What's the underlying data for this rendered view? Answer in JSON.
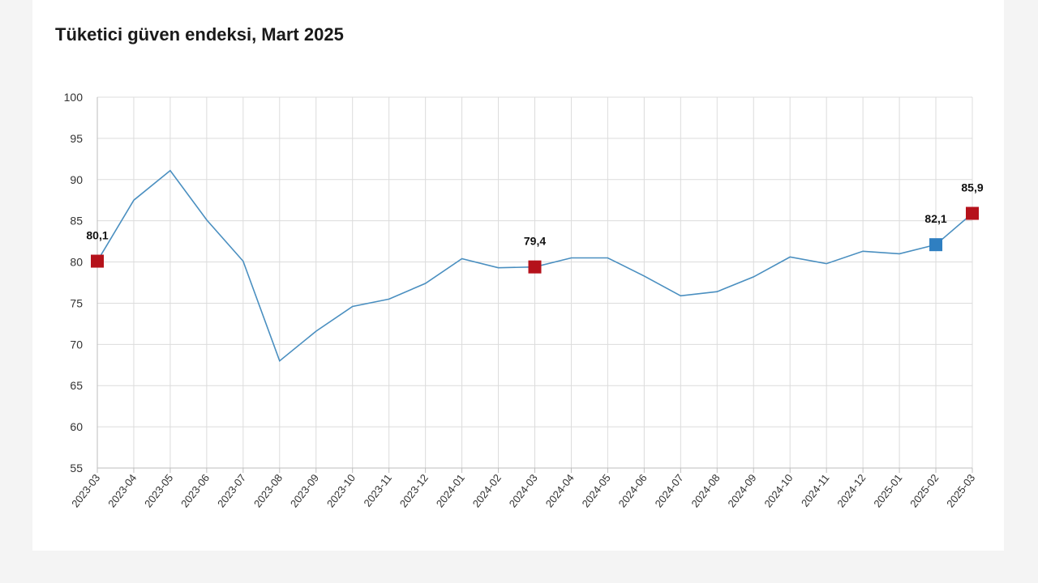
{
  "title": "Tüketici güven endeksi, Mart 2025",
  "colors": {
    "line": "#4a8fc0",
    "marker_red": "#b5121b",
    "marker_blue": "#2f7fc1",
    "grid": "#dcdcdc",
    "axis": "#bdbdbd"
  },
  "chart_data": {
    "type": "line",
    "title": "Tüketici güven endeksi, Mart 2025",
    "xlabel": "",
    "ylabel": "",
    "ylim": [
      55,
      100
    ],
    "yticks": [
      55,
      60,
      65,
      70,
      75,
      80,
      85,
      90,
      95,
      100
    ],
    "ytick_labels": [
      "55",
      "60",
      "65",
      "70",
      "75",
      "80",
      "85",
      "90",
      "95",
      "100"
    ],
    "grid": true,
    "categories": [
      "2023-03",
      "2023-04",
      "2023-05",
      "2023-06",
      "2023-07",
      "2023-08",
      "2023-09",
      "2023-10",
      "2023-11",
      "2023-12",
      "2024-01",
      "2024-02",
      "2024-03",
      "2024-04",
      "2024-05",
      "2024-06",
      "2024-07",
      "2024-08",
      "2024-09",
      "2024-10",
      "2024-11",
      "2024-12",
      "2025-01",
      "2025-02",
      "2025-03"
    ],
    "series": [
      {
        "values": [
          80.1,
          87.5,
          91.1,
          85.1,
          80.1,
          68.0,
          71.6,
          74.6,
          75.5,
          77.4,
          80.4,
          79.3,
          79.4,
          80.5,
          80.5,
          78.3,
          75.9,
          76.4,
          78.2,
          80.6,
          79.8,
          81.3,
          81.0,
          82.1,
          85.9
        ]
      }
    ],
    "markers": [
      {
        "index": 0,
        "color": "red",
        "label": "80,1"
      },
      {
        "index": 12,
        "color": "red",
        "label": "79,4"
      },
      {
        "index": 23,
        "color": "blue",
        "label": "82,1"
      },
      {
        "index": 24,
        "color": "red",
        "label": "85,9"
      }
    ]
  }
}
